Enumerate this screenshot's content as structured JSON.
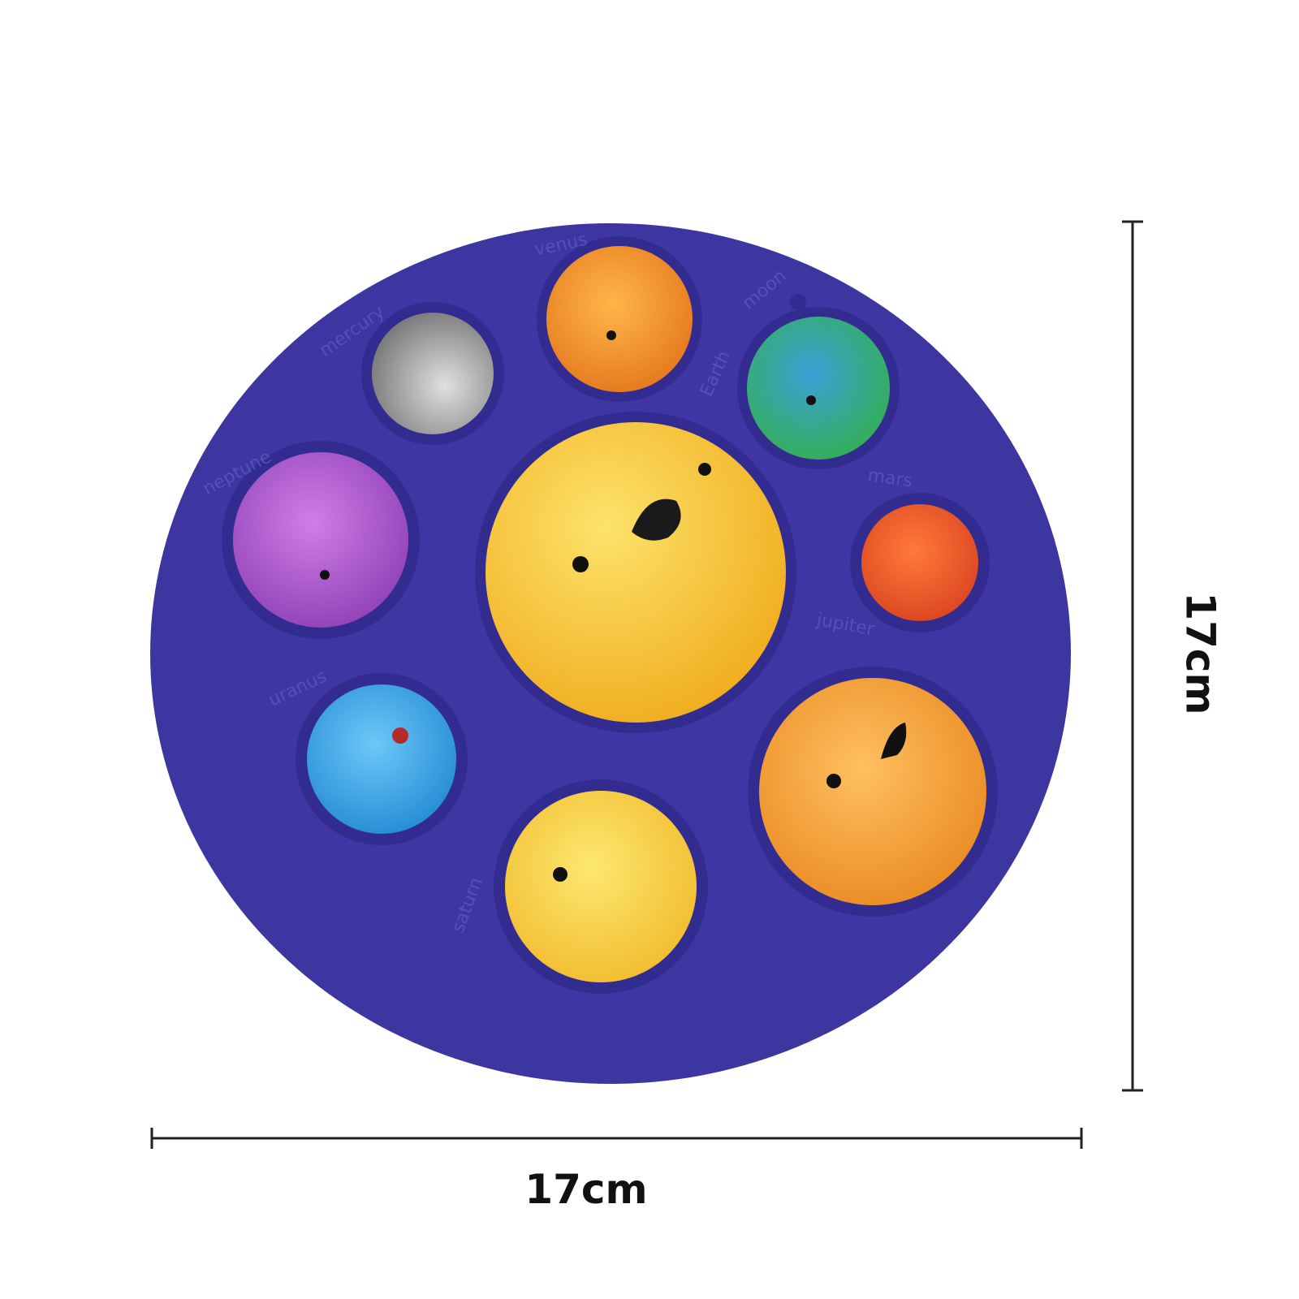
{
  "product": {
    "planets": [
      {
        "label": "mercury",
        "color": "#a8a8a8"
      },
      {
        "label": "venus",
        "color": "#f39a2a"
      },
      {
        "label": "moon",
        "color": "#4a3fa8"
      },
      {
        "label": "Earth",
        "color": "#3bb54a"
      },
      {
        "label": "neptune",
        "color": "#b05ad0"
      },
      {
        "label": "mars",
        "color": "#e8532a"
      },
      {
        "label": "jupiter",
        "color": "#f0a43a"
      },
      {
        "label": "uranus",
        "color": "#3aa6e8"
      },
      {
        "label": "saturn",
        "color": "#f2c230"
      }
    ],
    "sun_color": "#f5c02a",
    "board_color": "#3d35a0"
  },
  "dimensions": {
    "height_label": "17cm",
    "width_label": "17cm"
  }
}
